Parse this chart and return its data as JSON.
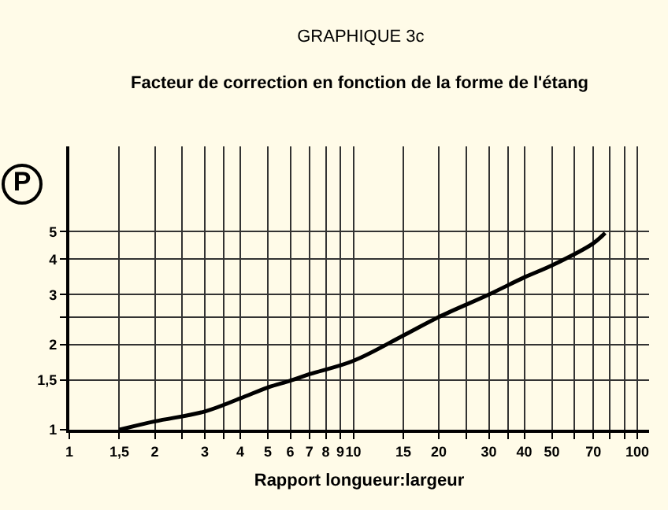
{
  "chart_data": {
    "type": "line",
    "title": "GRAPHIQUE 3c",
    "subtitle": "Facteur de correction en fonction de la forme de l'étang",
    "xlabel": "Rapport longueur:largeur",
    "ylabel": "P",
    "x": [
      1.5,
      2,
      3,
      4,
      5,
      6,
      7,
      10,
      15,
      20,
      30,
      40,
      50,
      70,
      77
    ],
    "series": [
      {
        "color": "#000000",
        "values": [
          1.0,
          1.07,
          1.16,
          1.29,
          1.41,
          1.49,
          1.57,
          1.75,
          2.15,
          2.5,
          3.0,
          3.45,
          3.8,
          4.55,
          4.95
        ]
      }
    ],
    "log": "xy",
    "xlim": [
      1,
      110
    ],
    "ylim": [
      1,
      10
    ],
    "xticks": [
      1,
      {
        "value": 1.5,
        "label": "1,5"
      },
      2,
      {
        "value": 2.5,
        "label": null
      },
      3,
      {
        "value": 3.5,
        "label": null
      },
      4,
      5,
      6,
      7,
      8,
      9,
      10,
      15,
      20,
      {
        "value": 25,
        "label": null
      },
      30,
      {
        "value": 35,
        "label": null
      },
      40,
      50,
      {
        "value": 60,
        "label": null
      },
      70,
      {
        "value": 80,
        "label": null
      },
      {
        "value": 90,
        "label": null
      },
      100
    ],
    "yticks": [
      1,
      {
        "value": 1.5,
        "label": "1,5"
      },
      2,
      {
        "value": 2.5,
        "label": null
      },
      3,
      4,
      5
    ],
    "grid": true,
    "marker": "none",
    "line_style": "solid"
  }
}
